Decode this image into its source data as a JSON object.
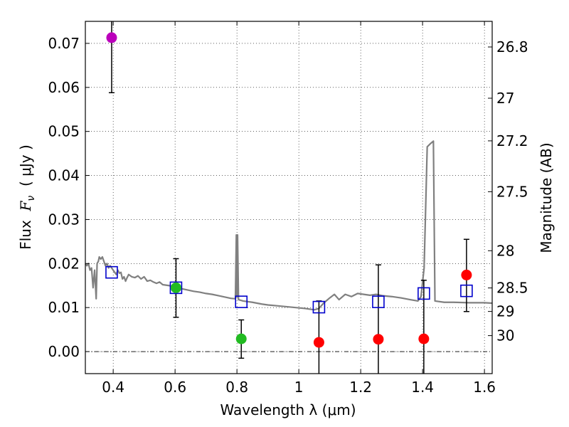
{
  "chart_data": {
    "type": "scatter",
    "xlabel": "Wavelength  λ (μm)",
    "ylabel": "Flux  F_ν  ( μJy )",
    "ylabel_parts": {
      "prefix": "Flux  ",
      "symbol": "F",
      "subscript": "ν",
      "suffix": "  ( μJy )"
    },
    "ylabel_right": "Magnitude (AB)",
    "xlim": [
      0.31,
      1.625
    ],
    "ylim": [
      -0.005,
      0.075
    ],
    "grid": true,
    "x_ticks": [
      0.4,
      0.6,
      0.8,
      1.0,
      1.2,
      1.4,
      1.6
    ],
    "x_tick_labels": [
      "0.4",
      "0.6",
      "0.8",
      "1",
      "1.2",
      "1.4",
      "1.6"
    ],
    "y_ticks": [
      0.0,
      0.01,
      0.02,
      0.03,
      0.04,
      0.05,
      0.06,
      0.07
    ],
    "y_tick_labels": [
      "0.00",
      "0.01",
      "0.02",
      "0.03",
      "0.04",
      "0.05",
      "0.06",
      "0.07"
    ],
    "magnitude_ticks": [
      26.8,
      27,
      27.2,
      27.5,
      28,
      28.5,
      29,
      30
    ],
    "magnitude_tick_labels": [
      "26.8",
      "27",
      "27.2",
      "27.5",
      "28",
      "28.5",
      "29",
      "30"
    ],
    "series": [
      {
        "name": "observed_flux",
        "marker": "circle",
        "points": [
          {
            "x": 0.395,
            "y": 0.0713,
            "yerr_low": 0.0588,
            "yerr_high": 0.075,
            "color": "#bb00bb"
          },
          {
            "x": 0.603,
            "y": 0.0145,
            "yerr_low": 0.0078,
            "yerr_high": 0.0211,
            "color": "#22bb22"
          },
          {
            "x": 0.814,
            "y": 0.0029,
            "yerr_low": -0.0015,
            "yerr_high": 0.0072,
            "color": "#22bb22"
          },
          {
            "x": 1.065,
            "y": 0.0021,
            "yerr_low": -0.005,
            "yerr_high": 0.0115,
            "color": "#ff0000"
          },
          {
            "x": 1.257,
            "y": 0.0028,
            "yerr_low": -0.005,
            "yerr_high": 0.0197,
            "color": "#ff0000"
          },
          {
            "x": 1.404,
            "y": 0.0029,
            "yerr_low": -0.005,
            "yerr_high": 0.0162,
            "color": "#ff0000"
          },
          {
            "x": 1.542,
            "y": 0.0174,
            "yerr_low": 0.0091,
            "yerr_high": 0.0255,
            "color": "#ff0000"
          }
        ]
      },
      {
        "name": "model_photometry",
        "marker": "open-square",
        "color": "#0000cc",
        "points": [
          {
            "x": 0.395,
            "y": 0.018
          },
          {
            "x": 0.603,
            "y": 0.0145
          },
          {
            "x": 0.814,
            "y": 0.0113
          },
          {
            "x": 1.065,
            "y": 0.0101
          },
          {
            "x": 1.257,
            "y": 0.0113
          },
          {
            "x": 1.404,
            "y": 0.0132
          },
          {
            "x": 1.542,
            "y": 0.0138
          }
        ]
      },
      {
        "name": "template_spectrum",
        "type": "line",
        "color": "#808080",
        "x": [
          0.31,
          0.315,
          0.32,
          0.325,
          0.33,
          0.335,
          0.34,
          0.345,
          0.348,
          0.352,
          0.355,
          0.36,
          0.365,
          0.37,
          0.375,
          0.38,
          0.385,
          0.39,
          0.395,
          0.4,
          0.405,
          0.41,
          0.415,
          0.42,
          0.425,
          0.43,
          0.435,
          0.44,
          0.445,
          0.45,
          0.46,
          0.47,
          0.48,
          0.49,
          0.5,
          0.51,
          0.52,
          0.53,
          0.54,
          0.55,
          0.56,
          0.58,
          0.6,
          0.62,
          0.64,
          0.66,
          0.68,
          0.7,
          0.72,
          0.74,
          0.76,
          0.78,
          0.795,
          0.798,
          0.8,
          0.802,
          0.805,
          0.82,
          0.85,
          0.88,
          0.9,
          0.93,
          0.96,
          0.99,
          1.02,
          1.05,
          1.065,
          1.08,
          1.1,
          1.115,
          1.13,
          1.15,
          1.17,
          1.19,
          1.21,
          1.23,
          1.25,
          1.27,
          1.3,
          1.33,
          1.36,
          1.385,
          1.395,
          1.405,
          1.415,
          1.425,
          1.435,
          1.44,
          1.47,
          1.5,
          1.55,
          1.6,
          1.625
        ],
        "y": [
          0.02,
          0.0195,
          0.02,
          0.0185,
          0.019,
          0.0145,
          0.0185,
          0.012,
          0.02,
          0.0205,
          0.0215,
          0.021,
          0.0215,
          0.0205,
          0.0195,
          0.02,
          0.019,
          0.0195,
          0.019,
          0.0185,
          0.018,
          0.0175,
          0.0185,
          0.0178,
          0.018,
          0.0165,
          0.017,
          0.016,
          0.0168,
          0.0175,
          0.017,
          0.0168,
          0.0172,
          0.0165,
          0.017,
          0.016,
          0.0162,
          0.0158,
          0.0155,
          0.0158,
          0.0152,
          0.015,
          0.0147,
          0.0143,
          0.014,
          0.0137,
          0.0135,
          0.0132,
          0.013,
          0.0127,
          0.0124,
          0.0121,
          0.012,
          0.0265,
          0.0125,
          0.0265,
          0.0118,
          0.0115,
          0.0112,
          0.0108,
          0.0106,
          0.0104,
          0.0102,
          0.01,
          0.0098,
          0.0095,
          0.0098,
          0.011,
          0.0122,
          0.013,
          0.0118,
          0.013,
          0.0125,
          0.0132,
          0.013,
          0.0128,
          0.013,
          0.0127,
          0.0125,
          0.0122,
          0.0118,
          0.0115,
          0.0125,
          0.019,
          0.0465,
          0.0472,
          0.0478,
          0.0115,
          0.0112,
          0.0112,
          0.0111,
          0.0111,
          0.011
        ]
      }
    ]
  }
}
